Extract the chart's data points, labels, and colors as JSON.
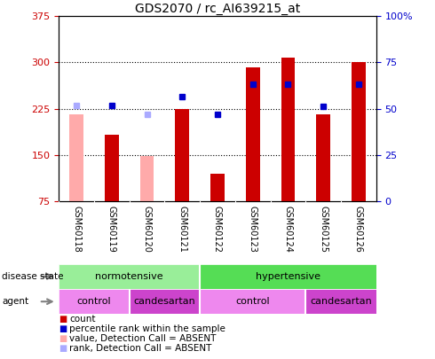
{
  "title": "GDS2070 / rc_AI639215_at",
  "samples": [
    "GSM60118",
    "GSM60119",
    "GSM60120",
    "GSM60121",
    "GSM60122",
    "GSM60123",
    "GSM60124",
    "GSM60125",
    "GSM60126"
  ],
  "count_values": [
    null,
    183,
    null,
    225,
    120,
    292,
    308,
    215,
    300
  ],
  "count_absent": [
    215,
    null,
    148,
    null,
    null,
    null,
    null,
    null,
    null
  ],
  "percentile_values": [
    null,
    230,
    null,
    245,
    215,
    265,
    265,
    228,
    265
  ],
  "percentile_absent": [
    230,
    null,
    215,
    null,
    null,
    null,
    null,
    null,
    null
  ],
  "ylim_left": [
    75,
    375
  ],
  "ylim_right": [
    0,
    100
  ],
  "yticks_left": [
    75,
    150,
    225,
    300,
    375
  ],
  "ytick_labels_left": [
    "75",
    "150",
    "225",
    "300",
    "375"
  ],
  "yticks_right": [
    0,
    25,
    50,
    75,
    100
  ],
  "ytick_labels_right": [
    "0",
    "25",
    "50",
    "75",
    "100%"
  ],
  "hlines": [
    150,
    225,
    300
  ],
  "bar_width": 0.4,
  "count_color": "#cc0000",
  "count_absent_color": "#ffaaaa",
  "percentile_color": "#0000cc",
  "percentile_absent_color": "#aaaaff",
  "color_normo": "#99ee99",
  "color_hyper": "#55dd55",
  "color_control": "#ee88ee",
  "color_candesartan": "#cc44cc",
  "legend_items": [
    {
      "label": "count",
      "color": "#cc0000"
    },
    {
      "label": "percentile rank within the sample",
      "color": "#0000cc"
    },
    {
      "label": "value, Detection Call = ABSENT",
      "color": "#ffaaaa"
    },
    {
      "label": "rank, Detection Call = ABSENT",
      "color": "#aaaaff"
    }
  ],
  "tick_area_color": "#cccccc"
}
